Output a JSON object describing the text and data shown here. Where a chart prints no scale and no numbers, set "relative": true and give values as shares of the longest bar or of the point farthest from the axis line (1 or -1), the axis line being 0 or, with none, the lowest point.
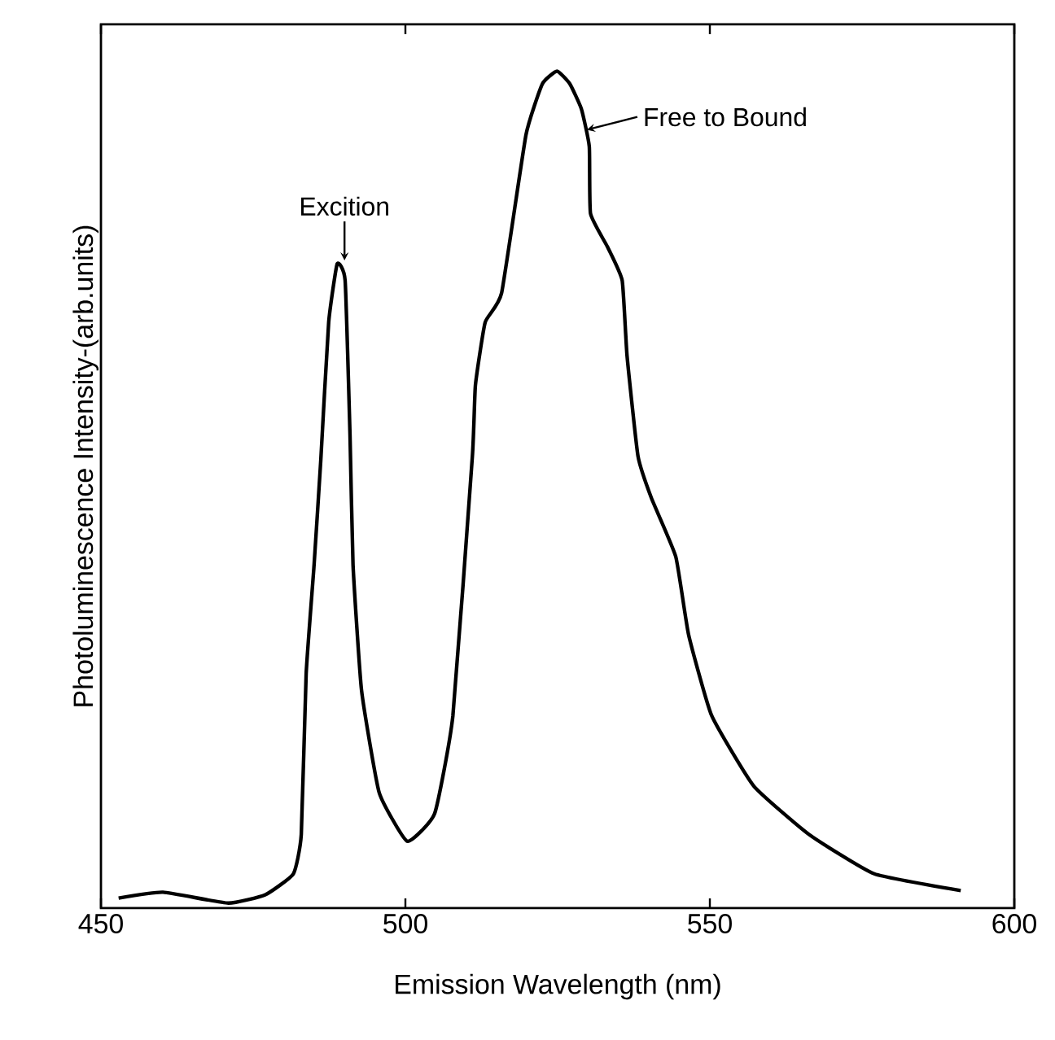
{
  "chart_data": {
    "type": "line",
    "relative": true,
    "xlabel": "Emission Wavelength (nm)",
    "ylabel": "Photoluminescence Intensity-(arb.units)",
    "xlim": [
      450,
      600
    ],
    "xticks": [
      450,
      500,
      550,
      600
    ],
    "series": [
      {
        "color": "#000000",
        "x": [
          452.9,
          460.2,
          470.9,
          477.0,
          481.6,
          482.9,
          483.7,
          485.0,
          486.1,
          487.4,
          488.8,
          490.1,
          490.9,
          491.4,
          492.8,
          495.7,
          500.3,
          504.8,
          507.8,
          511.0,
          511.5,
          513.1,
          515.8,
          519.8,
          522.5,
          524.9,
          527.0,
          528.9,
          530.2,
          530.4,
          533.2,
          535.6,
          536.4,
          538.2,
          540.4,
          544.4,
          546.5,
          550.3,
          557.2,
          566.3,
          577.0,
          591.2
        ],
        "values": [
          0.012,
          0.019,
          0.006,
          0.016,
          0.041,
          0.088,
          0.28,
          0.41,
          0.535,
          0.7,
          0.77,
          0.75,
          0.566,
          0.41,
          0.26,
          0.138,
          0.08,
          0.113,
          0.23,
          0.54,
          0.625,
          0.7,
          0.735,
          0.924,
          0.985,
          1,
          0.985,
          0.955,
          0.91,
          0.83,
          0.79,
          0.75,
          0.66,
          0.54,
          0.49,
          0.42,
          0.327,
          0.23,
          0.146,
          0.088,
          0.041,
          0.021
        ]
      }
    ],
    "annotations": [
      {
        "text": "Excition",
        "x": 490,
        "y": 0.77
      },
      {
        "text": "Free to Bound",
        "x": 529,
        "y": 0.93
      }
    ],
    "marker": "none",
    "line_style": "solid"
  }
}
